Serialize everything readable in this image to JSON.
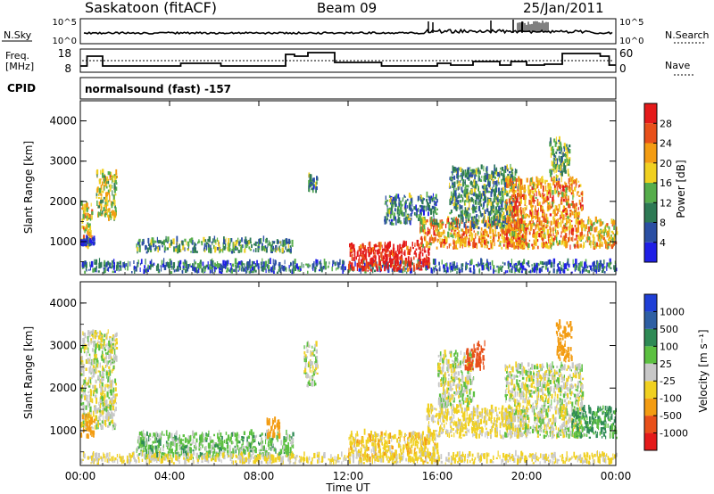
{
  "header": {
    "station": "Saskatoon (fitACF)",
    "beam": "Beam 09",
    "date": "25/Jan/2011"
  },
  "summary": {
    "nsky_label": "N.Sky",
    "nsky_ticks": [
      "10^5",
      "10^0"
    ],
    "nsearch_label": "N.Search",
    "nsearch_ticks": [
      "10^5",
      "10^0"
    ],
    "freq_label_1": "Freq.",
    "freq_label_2": "[MHz]",
    "freq_ticks": [
      "18",
      "8"
    ],
    "nave_label": "Nave",
    "nave_ticks": [
      "60",
      "0"
    ],
    "cpid_label": "CPID",
    "cpid_value": "normalsound (fast) -157"
  },
  "axes": {
    "xlabel": "Time UT",
    "ylabel": "Slant Range [km]",
    "xticks": [
      "00:00",
      "04:00",
      "08:00",
      "12:00",
      "16:00",
      "20:00",
      "00:00"
    ],
    "yticks": [
      "1000",
      "2000",
      "3000",
      "4000"
    ]
  },
  "power_colorbar": {
    "label": "Power [dB]",
    "ticks": [
      "4",
      "8",
      "12",
      "16",
      "20",
      "24",
      "28"
    ],
    "colors": [
      "#1f1fe6",
      "#2b4fa3",
      "#2e7a55",
      "#56ad4b",
      "#f0d020",
      "#f39c12",
      "#e8501a",
      "#e41a1a"
    ]
  },
  "velocity_colorbar": {
    "label": "Velocity [m s⁻¹]",
    "ticks": [
      "1000",
      "500",
      "100",
      "25",
      "-25",
      "-100",
      "-500",
      "-1000"
    ],
    "colors": [
      "#1f3fd6",
      "#2e5fa3",
      "#2e8a55",
      "#5cc041",
      "#c8c8c8",
      "#f0d020",
      "#f39c12",
      "#e8501a",
      "#e41a1a"
    ]
  },
  "chart_data": [
    {
      "type": "heatmap",
      "name": "Power",
      "time_range_hours": [
        0,
        24
      ],
      "range_km": [
        180,
        4500
      ],
      "regions": [
        {
          "t": [
            0.0,
            0.5
          ],
          "r": [
            800,
            1900
          ],
          "mag": 0.6
        },
        {
          "t": [
            0.7,
            1.6
          ],
          "r": [
            1500,
            2700
          ],
          "mag": 0.55
        },
        {
          "t": [
            0.0,
            0.6
          ],
          "r": [
            880,
            1050
          ],
          "mag": 0.1
        },
        {
          "t": [
            2.5,
            9.5
          ],
          "r": [
            700,
            1000
          ],
          "mag": 0.35
        },
        {
          "t": [
            0.0,
            24.0
          ],
          "r": [
            200,
            450
          ],
          "mag": 0.25
        },
        {
          "t": [
            10.2,
            10.6
          ],
          "r": [
            2200,
            2600
          ],
          "mag": 0.3
        },
        {
          "t": [
            12.0,
            15.6
          ],
          "r": [
            250,
            900
          ],
          "mag": 0.95
        },
        {
          "t": [
            15.2,
            20.0
          ],
          "r": [
            800,
            1500
          ],
          "mag": 0.7
        },
        {
          "t": [
            13.6,
            16.0
          ],
          "r": [
            1400,
            2100
          ],
          "mag": 0.3
        },
        {
          "t": [
            16.5,
            19.5
          ],
          "r": [
            1300,
            2800
          ],
          "mag": 0.35
        },
        {
          "t": [
            19.0,
            22.5
          ],
          "r": [
            800,
            2500
          ],
          "mag": 0.7
        },
        {
          "t": [
            21.0,
            21.9
          ],
          "r": [
            2500,
            3500
          ],
          "mag": 0.4
        },
        {
          "t": [
            22.5,
            24.0
          ],
          "r": [
            800,
            1500
          ],
          "mag": 0.6
        }
      ]
    },
    {
      "type": "heatmap",
      "name": "Velocity",
      "time_range_hours": [
        0,
        24
      ],
      "range_km": [
        180,
        4500
      ],
      "regions": [
        {
          "t": [
            0.0,
            1.6
          ],
          "r": [
            1000,
            3300
          ],
          "vel": 0
        },
        {
          "t": [
            0.0,
            0.6
          ],
          "r": [
            800,
            1300
          ],
          "vel": -300
        },
        {
          "t": [
            2.5,
            9.5
          ],
          "r": [
            300,
            900
          ],
          "vel": 60
        },
        {
          "t": [
            0.0,
            24.0
          ],
          "r": [
            200,
            400
          ],
          "vel": -40
        },
        {
          "t": [
            8.3,
            8.9
          ],
          "r": [
            800,
            1200
          ],
          "vel": -300
        },
        {
          "t": [
            10.0,
            10.6
          ],
          "r": [
            2000,
            3000
          ],
          "vel": 0
        },
        {
          "t": [
            12.0,
            16.0
          ],
          "r": [
            250,
            900
          ],
          "vel": -60
        },
        {
          "t": [
            15.5,
            20.0
          ],
          "r": [
            800,
            1500
          ],
          "vel": -40
        },
        {
          "t": [
            16.0,
            17.6
          ],
          "r": [
            1500,
            2800
          ],
          "vel": 0
        },
        {
          "t": [
            17.2,
            18.1
          ],
          "r": [
            2400,
            3000
          ],
          "vel": -600
        },
        {
          "t": [
            19.0,
            22.5
          ],
          "r": [
            800,
            2500
          ],
          "vel": 0
        },
        {
          "t": [
            22.0,
            24.0
          ],
          "r": [
            800,
            1500
          ],
          "vel": 120
        },
        {
          "t": [
            21.3,
            22.0
          ],
          "r": [
            2600,
            3500
          ],
          "vel": -300
        }
      ]
    }
  ]
}
